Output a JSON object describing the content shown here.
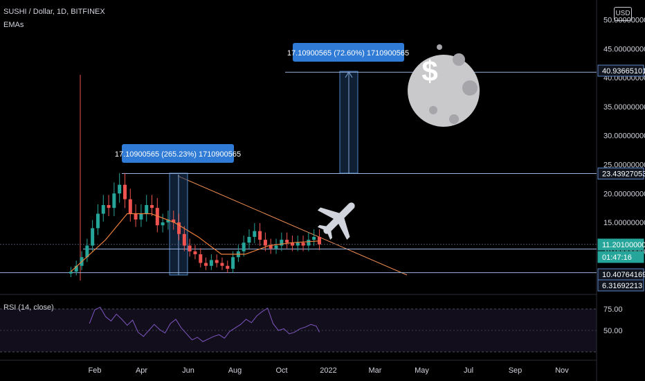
{
  "header": {
    "symbol": "SUSHI / Dollar, 1D, BITFINEX",
    "indicator": "EMAs"
  },
  "currency_button": "USD",
  "rsi_title": "RSI (14, close)",
  "colors": {
    "background": "#000000",
    "candle_up": "#26a69a",
    "candle_down": "#ef5350",
    "ema": "#f0803c",
    "trendline": "#f39056",
    "level_line": "#9bb4e0",
    "highlight_label": "#2f7bd6",
    "rsi_line": "#7e57c2",
    "moon": "#c9c9cc",
    "plane": "#d1d4dc"
  },
  "annotations": {
    "label_1": "17.10900565 (265.23%) 1710900565",
    "label_2": "17.10900565 (72.60%) 1710900565"
  },
  "price_badges": [
    {
      "value": "40.93665101",
      "kind": "level"
    },
    {
      "value": "23.43927053",
      "kind": "level"
    },
    {
      "value": "11.20100000",
      "kind": "current"
    },
    {
      "value": "01:47:16",
      "kind": "countdown"
    },
    {
      "value": "10.40764169",
      "kind": "level"
    },
    {
      "value": "6.31692213",
      "kind": "level"
    }
  ],
  "chart_data": [
    {
      "type": "candlestick",
      "title": "SUSHI / Dollar, 1D, BITFINEX",
      "x_tick_labels": [
        "Feb",
        "Apr",
        "Jun",
        "Aug",
        "Oct",
        "2022",
        "Mar",
        "May",
        "Jul",
        "Sep",
        "Nov"
      ],
      "y_tick_labels": [
        "50.00000000",
        "45.00000000",
        "40.00000000",
        "35.00000000",
        "30.00000000",
        "25.00000000",
        "20.00000000",
        "15.00000000",
        "10.00000000"
      ],
      "ylim": [
        5,
        51
      ],
      "series": [
        {
          "name": "close",
          "x": [
            "2021-01-01",
            "2021-01-08",
            "2021-01-15",
            "2021-01-22",
            "2021-01-29",
            "2021-02-05",
            "2021-02-12",
            "2021-02-19",
            "2021-02-26",
            "2021-03-05",
            "2021-03-12",
            "2021-03-19",
            "2021-03-26",
            "2021-04-02",
            "2021-04-09",
            "2021-04-16",
            "2021-04-23",
            "2021-04-30",
            "2021-05-07",
            "2021-05-14",
            "2021-05-21",
            "2021-05-28",
            "2021-06-04",
            "2021-06-11",
            "2021-06-18",
            "2021-06-25",
            "2021-07-02",
            "2021-07-09",
            "2021-07-16",
            "2021-07-23",
            "2021-07-30",
            "2021-08-06",
            "2021-08-13",
            "2021-08-20",
            "2021-08-27",
            "2021-09-03",
            "2021-09-10",
            "2021-09-17",
            "2021-09-24",
            "2021-10-01",
            "2021-10-08",
            "2021-10-15",
            "2021-10-22",
            "2021-10-29",
            "2021-11-05",
            "2021-11-12",
            "2021-11-19"
          ],
          "values": [
            6.5,
            7.5,
            9.0,
            11.0,
            14.0,
            16.5,
            18.0,
            17.5,
            20.0,
            21.5,
            19.0,
            16.5,
            15.5,
            16.5,
            18.0,
            17.5,
            14.5,
            15.0,
            15.5,
            15.0,
            13.0,
            11.0,
            10.0,
            9.5,
            8.0,
            7.5,
            8.5,
            8.0,
            7.5,
            7.0,
            9.0,
            10.0,
            11.5,
            12.5,
            13.5,
            12.0,
            11.0,
            10.5,
            11.0,
            12.0,
            11.5,
            11.0,
            11.5,
            11.0,
            12.0,
            12.5,
            11.2
          ]
        },
        {
          "name": "EMA",
          "x": [
            "2021-01-01",
            "2021-02-15",
            "2021-03-15",
            "2021-04-15",
            "2021-05-15",
            "2021-06-15",
            "2021-07-15",
            "2021-08-15",
            "2021-09-15",
            "2021-10-15",
            "2021-11-19"
          ],
          "values": [
            6.5,
            12.0,
            16.5,
            16.5,
            15.0,
            12.5,
            9.5,
            9.5,
            11.0,
            11.5,
            11.8
          ]
        }
      ],
      "horizontal_levels": [
        40.93665101,
        23.43927053,
        11.201,
        10.40764169,
        6.31692213
      ],
      "trendline": {
        "from": {
          "x": "2021-05-23",
          "y": 23.4
        },
        "to": {
          "x": "2022-03-20",
          "y": 6.3
        }
      }
    },
    {
      "type": "line",
      "title": "RSI (14, close)",
      "y_tick_labels": [
        "75.00",
        "50.00"
      ],
      "ylim": [
        30,
        85
      ],
      "x": [
        "2021-01-25",
        "2021-02-01",
        "2021-02-08",
        "2021-02-15",
        "2021-02-22",
        "2021-03-01",
        "2021-03-08",
        "2021-03-15",
        "2021-03-22",
        "2021-03-29",
        "2021-04-05",
        "2021-04-12",
        "2021-04-19",
        "2021-04-26",
        "2021-05-03",
        "2021-05-10",
        "2021-05-17",
        "2021-05-24",
        "2021-05-31",
        "2021-06-07",
        "2021-06-14",
        "2021-06-21",
        "2021-06-28",
        "2021-07-05",
        "2021-07-12",
        "2021-07-19",
        "2021-07-26",
        "2021-08-02",
        "2021-08-09",
        "2021-08-16",
        "2021-08-23",
        "2021-08-30",
        "2021-09-06",
        "2021-09-13",
        "2021-09-20",
        "2021-09-27",
        "2021-10-04",
        "2021-10-11",
        "2021-10-18",
        "2021-10-25",
        "2021-11-01",
        "2021-11-08",
        "2021-11-15",
        "2021-11-19"
      ],
      "values": [
        58,
        74,
        77,
        66,
        61,
        69,
        63,
        56,
        62,
        48,
        43,
        50,
        57,
        51,
        47,
        58,
        63,
        53,
        46,
        39,
        42,
        37,
        40,
        43,
        45,
        41,
        49,
        53,
        57,
        63,
        59,
        67,
        72,
        76,
        58,
        50,
        52,
        46,
        48,
        52,
        54,
        57,
        55,
        48
      ]
    }
  ]
}
